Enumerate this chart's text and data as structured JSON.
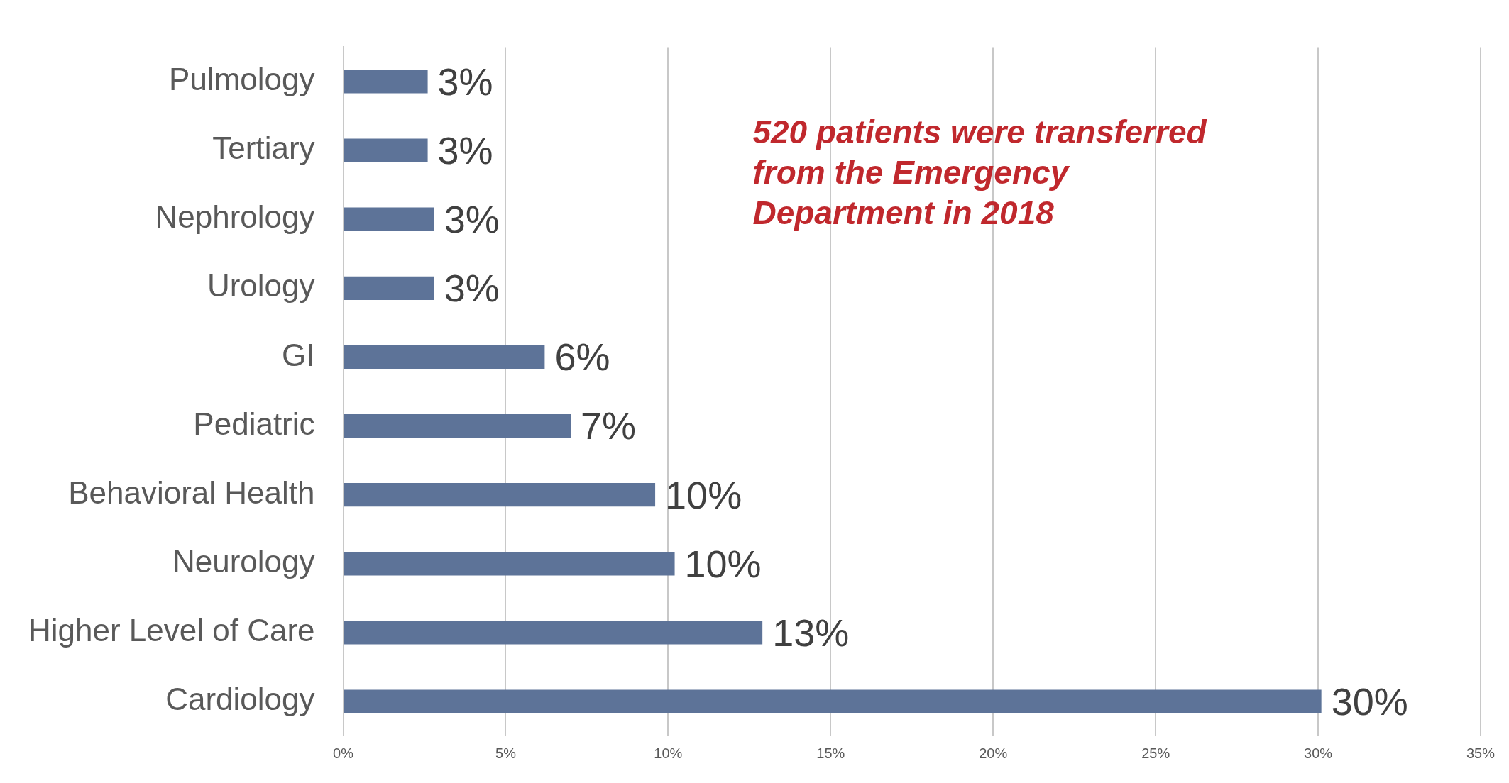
{
  "chart_data": {
    "type": "bar",
    "orientation": "horizontal",
    "categories": [
      "Pulmology",
      "Tertiary",
      "Nephrology",
      "Urology",
      "GI",
      "Pediatric",
      "Behavioral Health",
      "Neurology",
      "Higher Level of Care",
      "Cardiology"
    ],
    "values": [
      2.6,
      2.6,
      2.8,
      2.8,
      6.2,
      7.0,
      9.6,
      10.2,
      12.9,
      30.1
    ],
    "value_labels": [
      "3%",
      "3%",
      "3%",
      "3%",
      "6%",
      "7%",
      "10%",
      "10%",
      "13%",
      "30%"
    ],
    "color": "#5d7398",
    "xlim": [
      0,
      35
    ],
    "xticks": [
      {
        "value": 0,
        "label": "0%"
      },
      {
        "value": 5,
        "label": "5%"
      },
      {
        "value": 10,
        "label": "10%"
      },
      {
        "value": 15,
        "label": "15%"
      },
      {
        "value": 20,
        "label": "20%"
      },
      {
        "value": 25,
        "label": "25%"
      },
      {
        "value": 30,
        "label": "30%"
      },
      {
        "value": 35,
        "label": "35%"
      }
    ],
    "grid": "x",
    "legend": false,
    "annotations": [
      "520 patients were transferred from the Emergency Department in 2018"
    ]
  }
}
